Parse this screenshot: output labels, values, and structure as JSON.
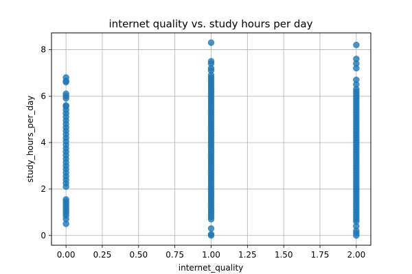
{
  "chart_data": {
    "type": "scatter",
    "title": "internet quality vs. study hours per day",
    "xlabel": "internet_quality",
    "ylabel": "study_hours_per_day",
    "xlim": [
      -0.1,
      2.1
    ],
    "ylim": [
      -0.42,
      8.72
    ],
    "grid": true,
    "point_color": "#1f77b4",
    "point_alpha": 0.8,
    "x_ticks": [
      "0.00",
      "0.25",
      "0.50",
      "0.75",
      "1.00",
      "1.25",
      "1.50",
      "1.75",
      "2.00"
    ],
    "x_tick_values": [
      0,
      0.25,
      0.5,
      0.75,
      1.0,
      1.25,
      1.5,
      1.75,
      2.0
    ],
    "y_ticks": [
      "0",
      "2",
      "4",
      "6",
      "8"
    ],
    "y_tick_values": [
      0,
      2,
      4,
      6,
      8
    ],
    "series": [
      {
        "x_value": 0,
        "values": [
          0.5,
          0.7,
          0.85,
          0.95,
          1.05,
          1.15,
          1.25,
          1.35,
          1.45,
          1.55,
          2.1,
          2.25,
          2.4,
          2.55,
          2.7,
          2.85,
          3.0,
          3.15,
          3.3,
          3.45,
          3.6,
          3.75,
          3.9,
          4.05,
          4.2,
          4.35,
          4.5,
          4.65,
          4.8,
          4.95,
          5.1,
          5.25,
          5.4,
          5.55,
          5.6,
          5.9,
          6.0,
          6.1,
          6.6,
          6.65,
          6.8
        ]
      },
      {
        "x_value": 1,
        "values": [
          0.0,
          0.05,
          0.3,
          0.7,
          0.8,
          0.9,
          1.0,
          1.1,
          1.2,
          1.3,
          1.4,
          1.5,
          1.6,
          1.7,
          1.8,
          1.9,
          2.0,
          2.1,
          2.2,
          2.3,
          2.4,
          2.5,
          2.6,
          2.7,
          2.8,
          2.9,
          3.0,
          3.1,
          3.2,
          3.3,
          3.4,
          3.5,
          3.6,
          3.7,
          3.8,
          3.9,
          4.0,
          4.1,
          4.2,
          4.3,
          4.4,
          4.5,
          4.6,
          4.7,
          4.8,
          4.9,
          5.0,
          5.1,
          5.2,
          5.3,
          5.4,
          5.5,
          5.6,
          5.7,
          5.8,
          5.9,
          6.0,
          6.1,
          6.2,
          6.3,
          6.4,
          6.5,
          6.6,
          6.7,
          6.8,
          6.9,
          7.1,
          7.2,
          7.4,
          7.5,
          8.3
        ]
      },
      {
        "x_value": 2,
        "values": [
          0.0,
          0.1,
          0.2,
          0.4,
          0.6,
          0.7,
          0.8,
          0.9,
          1.0,
          1.1,
          1.2,
          1.3,
          1.4,
          1.5,
          1.6,
          1.7,
          1.8,
          1.9,
          2.0,
          2.1,
          2.2,
          2.3,
          2.4,
          2.5,
          2.6,
          2.7,
          2.8,
          2.9,
          3.0,
          3.1,
          3.2,
          3.3,
          3.4,
          3.5,
          3.6,
          3.7,
          3.8,
          3.9,
          4.0,
          4.1,
          4.2,
          4.3,
          4.4,
          4.5,
          4.6,
          4.7,
          4.8,
          4.9,
          5.0,
          5.1,
          5.2,
          5.3,
          5.4,
          5.5,
          5.6,
          5.7,
          5.8,
          5.9,
          6.0,
          6.1,
          6.2,
          6.3,
          6.5,
          6.7,
          7.2,
          7.4,
          7.6,
          8.2
        ]
      }
    ]
  }
}
